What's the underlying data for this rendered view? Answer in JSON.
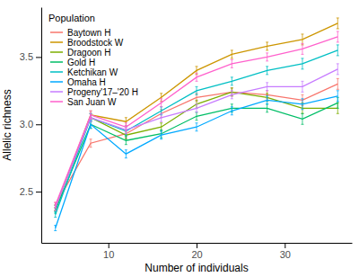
{
  "chart_data": {
    "type": "line",
    "x_label": "Number of individuals",
    "y_label": "Allelic richness",
    "legend_title": "Population",
    "legend": "top-left",
    "grid": false,
    "x": [
      4,
      8,
      12,
      16,
      20,
      24,
      28,
      32,
      36
    ],
    "xlim": [
      2.4,
      37.6
    ],
    "xticks": [
      10,
      20,
      30
    ],
    "ylim": [
      2.12,
      3.87
    ],
    "yticks": [
      2.5,
      {
        "value": 3,
        "label": "3.0"
      },
      3.5
    ],
    "series": [
      {
        "name": "Baytown H",
        "color": "#F8766D",
        "values": [
          2.4,
          2.86,
          2.93,
          3.08,
          3.2,
          3.24,
          3.22,
          3.18,
          3.3
        ],
        "errors": [
          0.02,
          0.03,
          0.03,
          0.03,
          0.03,
          0.03,
          0.03,
          0.04,
          0.04
        ]
      },
      {
        "name": "Broodstock W",
        "color": "#CD9600",
        "values": [
          2.38,
          3.07,
          3.02,
          3.2,
          3.4,
          3.52,
          3.58,
          3.63,
          3.75
        ],
        "errors": [
          0.02,
          0.03,
          0.03,
          0.03,
          0.03,
          0.03,
          0.03,
          0.04,
          0.04
        ]
      },
      {
        "name": "Dragoon H",
        "color": "#7CAE00",
        "values": [
          2.38,
          3.05,
          2.92,
          2.98,
          3.15,
          3.24,
          3.2,
          3.12,
          3.12
        ],
        "errors": [
          0.02,
          0.03,
          0.03,
          0.03,
          0.03,
          0.03,
          0.03,
          0.04,
          0.04
        ]
      },
      {
        "name": "Gold H",
        "color": "#00BE67",
        "values": [
          2.36,
          3.0,
          2.88,
          2.93,
          3.06,
          3.12,
          3.12,
          3.04,
          3.16
        ],
        "errors": [
          0.02,
          0.03,
          0.03,
          0.03,
          0.03,
          0.03,
          0.03,
          0.04,
          0.04
        ]
      },
      {
        "name": "Ketchikan W",
        "color": "#00BFC4",
        "values": [
          2.33,
          3.05,
          2.95,
          3.1,
          3.25,
          3.32,
          3.4,
          3.45,
          3.55
        ],
        "errors": [
          0.02,
          0.03,
          0.03,
          0.03,
          0.03,
          0.03,
          0.03,
          0.04,
          0.04
        ]
      },
      {
        "name": "Omaha H",
        "color": "#00A9FF",
        "values": [
          2.23,
          3.0,
          2.78,
          2.92,
          2.98,
          3.1,
          3.18,
          3.15,
          3.21
        ],
        "errors": [
          0.02,
          0.03,
          0.03,
          0.03,
          0.03,
          0.03,
          0.03,
          0.04,
          0.04
        ]
      },
      {
        "name": "Progeny'17–'20 H",
        "color": "#C77CFF",
        "values": [
          2.38,
          3.05,
          2.96,
          3.05,
          3.12,
          3.22,
          3.28,
          3.28,
          3.41
        ],
        "errors": [
          0.02,
          0.03,
          0.03,
          0.03,
          0.03,
          0.03,
          0.03,
          0.04,
          0.04
        ]
      },
      {
        "name": "San Juan W",
        "color": "#FF61CC",
        "values": [
          2.4,
          3.07,
          2.98,
          3.16,
          3.35,
          3.45,
          3.5,
          3.56,
          3.65
        ],
        "errors": [
          0.02,
          0.03,
          0.03,
          0.03,
          0.03,
          0.03,
          0.03,
          0.04,
          0.04
        ]
      }
    ]
  }
}
